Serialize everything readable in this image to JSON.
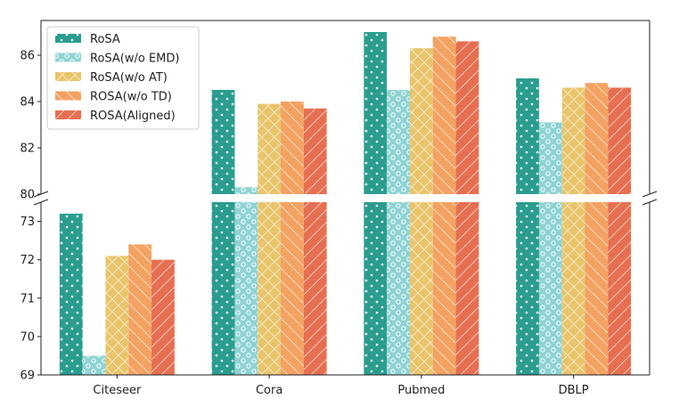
{
  "chart_data": {
    "type": "bar",
    "title": "",
    "xlabel": "",
    "ylabel": "",
    "broken_axis": true,
    "categories": [
      "Citeseer",
      "Cora",
      "Pubmed",
      "DBLP"
    ],
    "upper_panel": {
      "ylim": [
        80,
        87.5
      ],
      "yticks": [
        80,
        82,
        84,
        86
      ]
    },
    "lower_panel": {
      "ylim": [
        69,
        73.5
      ],
      "yticks": [
        69,
        70,
        71,
        72,
        73
      ]
    },
    "series": [
      {
        "name": "RoSA",
        "color": "#2a9d8f",
        "pattern": "dots",
        "values": [
          73.2,
          84.5,
          87.0,
          85.0
        ]
      },
      {
        "name": "RoSA(w/o EMD)",
        "color": "#8fd3d4",
        "pattern": "circles",
        "values": [
          69.5,
          80.3,
          84.5,
          83.1
        ]
      },
      {
        "name": "RoSA(w/o AT)",
        "color": "#e9c46a",
        "pattern": "cross",
        "values": [
          72.1,
          83.9,
          86.3,
          84.6
        ]
      },
      {
        "name": "ROSA(w/o TD)",
        "color": "#f4a261",
        "pattern": "backslash",
        "values": [
          72.4,
          84.0,
          86.8,
          84.8
        ]
      },
      {
        "name": "ROSA(Aligned)",
        "color": "#e76f51",
        "pattern": "slash",
        "values": [
          72.0,
          83.7,
          86.6,
          84.6
        ]
      }
    ],
    "legend": {
      "location": "top-left"
    }
  }
}
